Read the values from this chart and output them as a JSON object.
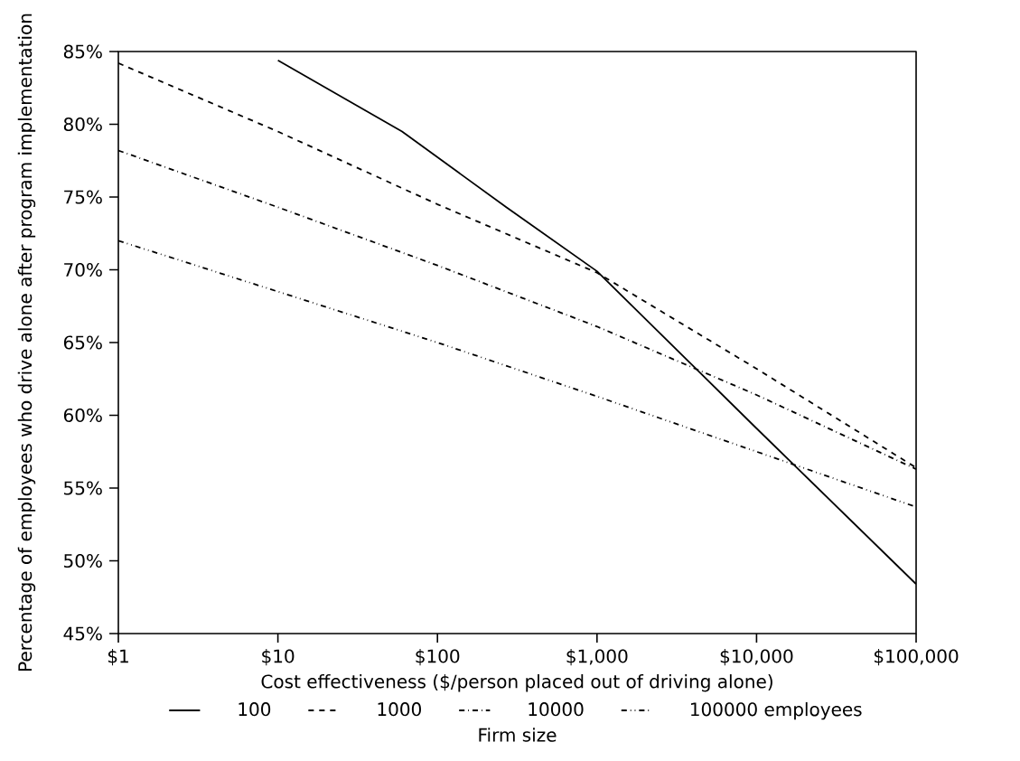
{
  "chart_data": {
    "type": "line",
    "xlabel": "Cost effectiveness ($/person placed out of driving alone)",
    "ylabel": "Percentage of employees who drive alone after program implementation",
    "legend_title": "Firm size",
    "legend": "bottom",
    "log": "x",
    "grid": false,
    "marker": "none",
    "xlim": [
      1,
      100000
    ],
    "ylim": [
      45,
      85
    ],
    "xticks": [
      {
        "value": 1,
        "label": "$1"
      },
      {
        "value": 10,
        "label": "$10"
      },
      {
        "value": 100,
        "label": "$100"
      },
      {
        "value": 1000,
        "label": "$1,000"
      },
      {
        "value": 10000,
        "label": "$10,000"
      },
      {
        "value": 100000,
        "label": "$100,000"
      }
    ],
    "yticks": [
      {
        "value": 45,
        "label": "45%"
      },
      {
        "value": 50,
        "label": "50%"
      },
      {
        "value": 55,
        "label": "55%"
      },
      {
        "value": 60,
        "label": "60%"
      },
      {
        "value": 65,
        "label": "65%"
      },
      {
        "value": 70,
        "label": "70%"
      },
      {
        "value": 75,
        "label": "75%"
      },
      {
        "value": 80,
        "label": "80%"
      },
      {
        "value": 85,
        "label": "85%"
      }
    ],
    "series": [
      {
        "name": "100",
        "color": "#000000",
        "line_style": "solid",
        "x": [
          10,
          60,
          270,
          1000,
          10000,
          100000
        ],
        "values": [
          84.4,
          79.5,
          74.3,
          69.9,
          59.1,
          48.4
        ]
      },
      {
        "name": "1000",
        "color": "#000000",
        "line_style": "dashed",
        "x": [
          1,
          10,
          100,
          1000,
          10000,
          100000
        ],
        "values": [
          84.2,
          79.5,
          74.5,
          69.8,
          63.2,
          56.4
        ]
      },
      {
        "name": "10000",
        "color": "#000000",
        "line_style": "dashdot",
        "x": [
          1,
          10,
          100,
          1000,
          10000,
          100000
        ],
        "values": [
          78.2,
          74.3,
          70.3,
          66.1,
          61.4,
          56.3
        ]
      },
      {
        "name": "100000 employees",
        "color": "#000000",
        "line_style": "dashdotdot",
        "x": [
          1,
          10,
          100,
          1000,
          10000,
          100000
        ],
        "values": [
          72.0,
          68.5,
          65.0,
          61.3,
          57.5,
          53.7
        ]
      }
    ]
  }
}
